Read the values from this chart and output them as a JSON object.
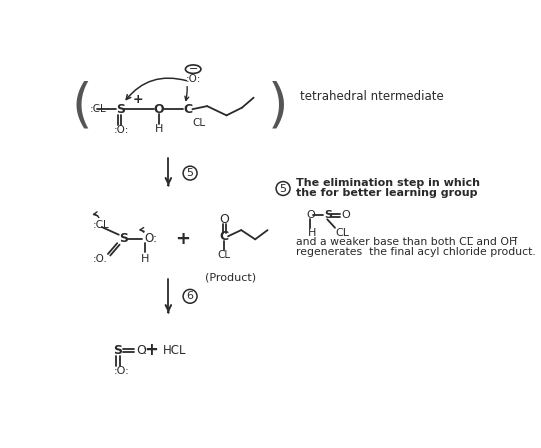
{
  "bg_color": "#ffffff",
  "fig_width": 5.41,
  "fig_height": 4.48,
  "dpi": 100,
  "text_color": "#2a2a2a",
  "right_panel_title": "tetrahedral ntermediate",
  "right_panel_text1": "The elimination step in which",
  "right_panel_text2": "the for better learning group",
  "right_panel_text3": "and a weaker base than both CL̅ and OH̅",
  "right_panel_text4": "regenerates  the final acyl chloride product."
}
